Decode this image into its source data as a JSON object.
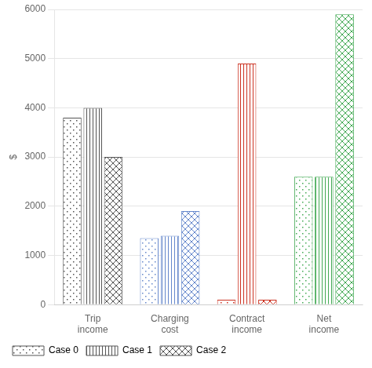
{
  "chart_data": {
    "type": "bar",
    "categories": [
      "Trip\nincome",
      "Charging\ncost",
      "Contract\nincome",
      "Net\nincome"
    ],
    "series": [
      {
        "name": "Case 0",
        "values": [
          3800,
          1350,
          100,
          2600
        ]
      },
      {
        "name": "Case 1",
        "values": [
          4000,
          1400,
          4900,
          2600
        ]
      },
      {
        "name": "Case 2",
        "values": [
          3000,
          1900,
          100,
          5900
        ]
      }
    ],
    "colors": [
      "#555555",
      "#6688cc",
      "#cc3322",
      "#44aa55"
    ],
    "ylabel": "$",
    "ylim": [
      0,
      6000
    ],
    "yticks": [
      0,
      1000,
      2000,
      3000,
      4000,
      5000,
      6000
    ],
    "grid": true,
    "legend": "bottom"
  }
}
